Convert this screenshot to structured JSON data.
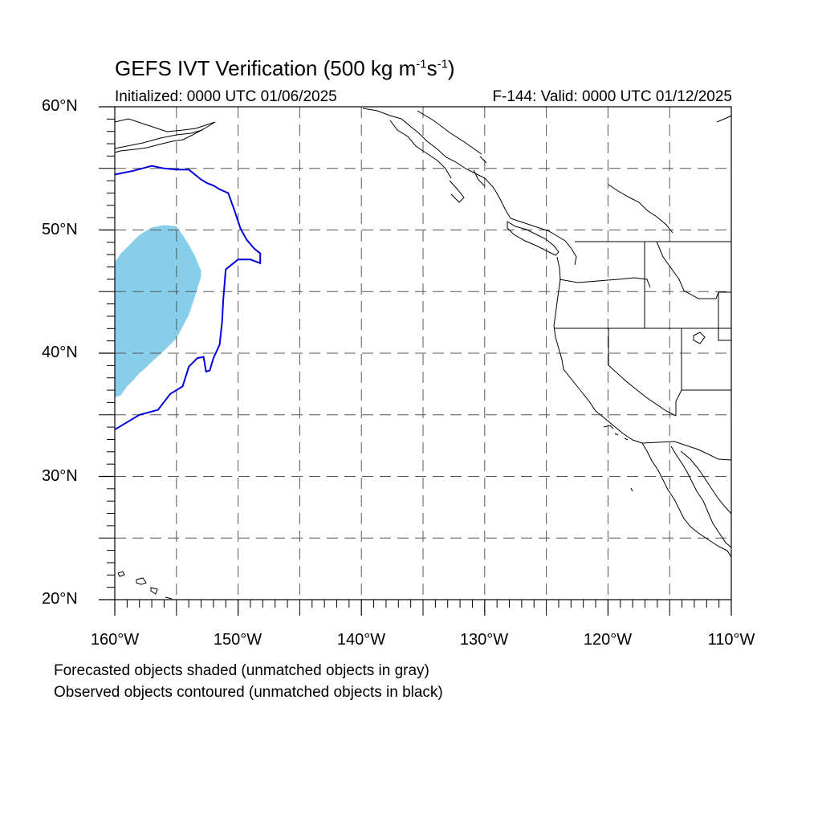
{
  "title": {
    "main": "GEFS IVT Verification (500 kg m",
    "sup1": "-1",
    "mid": "s",
    "sup2": "-1",
    "end": ")"
  },
  "init_label": "Initialized: 0000 UTC 01/06/2025",
  "valid_label": "F-144: Valid: 0000 UTC 01/12/2025",
  "lat_labels": [
    "60°N",
    "50°N",
    "40°N",
    "30°N",
    "20°N"
  ],
  "lon_labels": [
    "160°W",
    "150°W",
    "140°W",
    "130°W",
    "120°W",
    "110°W"
  ],
  "captions": [
    "Forecasted objects shaded (unmatched objects in gray)",
    "Observed objects contoured (unmatched objects in black)"
  ],
  "colors": {
    "forecast_fill": "#87ceeb",
    "observed_contour": "#0000dd",
    "grid": "#555555",
    "coast": "#000000"
  },
  "map_extent": {
    "lon_min": -160,
    "lon_max": -110,
    "lat_min": 20,
    "lat_max": 60
  },
  "forecast_object": {
    "lons": [
      -160,
      -159.5,
      -159,
      -158.5,
      -158,
      -157,
      -156,
      -155,
      -154.5,
      -154,
      -153.5,
      -153,
      -153,
      -153.5,
      -154,
      -155,
      -156,
      -157,
      -157.5,
      -158,
      -158.5,
      -159,
      -159.5,
      -160
    ],
    "lats": [
      47.4,
      48.1,
      48.6,
      49.1,
      49.6,
      50.2,
      50.4,
      50.3,
      49.6,
      48.8,
      47.9,
      46.7,
      46.2,
      44.6,
      43.1,
      41.2,
      40.2,
      39.3,
      38.8,
      38.4,
      37.8,
      37.3,
      36.6,
      36.4
    ]
  },
  "observed_object": {
    "lons": [
      -160,
      -158.5,
      -157,
      -156,
      -155,
      -154,
      -153,
      -152.5,
      -152,
      -151.5,
      -150.8,
      -150.3,
      -149.8,
      -149.3,
      -148.7,
      -148.2,
      -148.2,
      -149,
      -150,
      -151,
      -151.2,
      -151.3,
      -151.5,
      -152,
      -152.3,
      -152.6,
      -152.8,
      -153.3,
      -154,
      -154.5,
      -155.5,
      -156.5,
      -158,
      -160
    ],
    "lats": [
      54.5,
      54.8,
      55.2,
      55.0,
      54.9,
      54.9,
      54.1,
      53.8,
      53.6,
      53.3,
      53.0,
      51.6,
      50.1,
      49.2,
      48.5,
      48.1,
      47.3,
      47.6,
      47.6,
      46.8,
      44.4,
      42.5,
      40.7,
      39.6,
      38.6,
      38.5,
      39.7,
      39.6,
      38.9,
      37.3,
      36.7,
      35.4,
      35.0,
      33.8
    ]
  }
}
